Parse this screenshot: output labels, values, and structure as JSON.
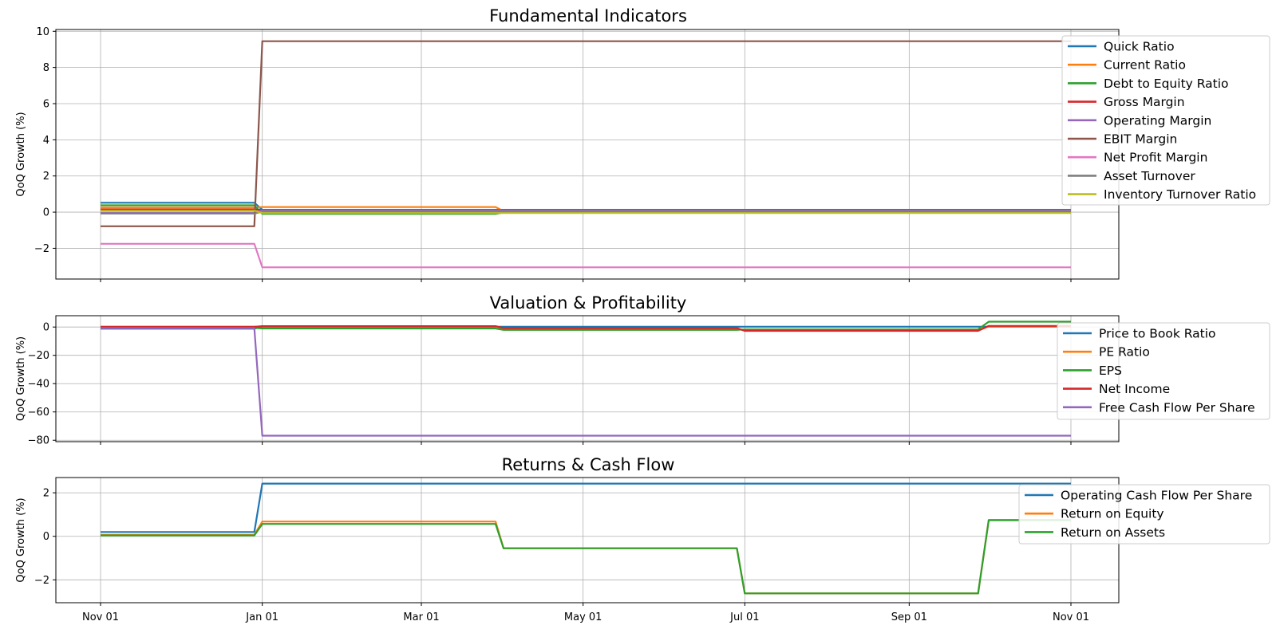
{
  "chart_data": [
    {
      "type": "line",
      "title": "Fundamental Indicators",
      "ylabel": "QoQ Growth (%)",
      "ylim": [
        -3.7,
        10.1
      ],
      "yticks": [
        -2,
        0,
        2,
        4,
        6,
        8,
        10
      ],
      "grid": true,
      "legend_position": "right",
      "series": [
        {
          "name": "Quick Ratio",
          "color": "#1f77b4",
          "x": [
            "2023-11-01",
            "2023-12-29",
            "2024-01-01",
            "2024-11-01"
          ],
          "y": [
            0.52,
            0.52,
            0.13,
            0.13
          ]
        },
        {
          "name": "Current Ratio",
          "color": "#ff7f0e",
          "x": [
            "2023-11-01",
            "2023-12-29",
            "2024-01-01",
            "2024-03-29",
            "2024-04-01",
            "2024-11-01"
          ],
          "y": [
            0.25,
            0.25,
            0.28,
            0.28,
            0.05,
            0.05
          ]
        },
        {
          "name": "Debt to Equity Ratio",
          "color": "#2ca02c",
          "x": [
            "2023-11-01",
            "2023-12-29",
            "2024-01-01",
            "2024-03-29",
            "2024-04-01",
            "2024-11-01"
          ],
          "y": [
            0.38,
            0.38,
            -0.1,
            -0.1,
            -0.02,
            -0.02
          ]
        },
        {
          "name": "Gross Margin",
          "color": "#d62728",
          "x": [
            "2023-11-01",
            "2023-12-29",
            "2024-01-01",
            "2024-11-01"
          ],
          "y": [
            0.15,
            0.15,
            0.12,
            0.12
          ]
        },
        {
          "name": "Operating Margin",
          "color": "#9467bd",
          "x": [
            "2023-11-01",
            "2023-12-29",
            "2024-01-01",
            "2024-11-01"
          ],
          "y": [
            -0.05,
            -0.05,
            0.1,
            0.1
          ]
        },
        {
          "name": "EBIT Margin",
          "color": "#8c564b",
          "x": [
            "2023-11-01",
            "2023-12-29",
            "2024-01-01",
            "2024-11-01"
          ],
          "y": [
            -0.78,
            -0.78,
            9.45,
            9.45
          ]
        },
        {
          "name": "Net Profit Margin",
          "color": "#e377c2",
          "x": [
            "2023-11-01",
            "2023-12-29",
            "2024-01-01",
            "2024-11-01"
          ],
          "y": [
            -1.75,
            -1.75,
            -3.05,
            -3.05
          ]
        },
        {
          "name": "Asset Turnover",
          "color": "#7f7f7f",
          "x": [
            "2023-11-01",
            "2023-12-29",
            "2024-01-01",
            "2024-11-01"
          ],
          "y": [
            -0.08,
            -0.08,
            0.03,
            0.03
          ]
        },
        {
          "name": "Inventory Turnover Ratio",
          "color": "#bcbd22",
          "x": [
            "2023-11-01",
            "2023-12-29",
            "2024-01-01",
            "2024-11-01"
          ],
          "y": [
            0.08,
            0.08,
            -0.05,
            -0.05
          ]
        }
      ]
    },
    {
      "type": "line",
      "title": "Valuation & Profitability",
      "ylabel": "QoQ Growth (%)",
      "ylim": [
        -81,
        8
      ],
      "yticks": [
        -80,
        -60,
        -40,
        -20,
        0
      ],
      "grid": true,
      "legend_position": "right",
      "series": [
        {
          "name": "Price to Book Ratio",
          "color": "#1f77b4",
          "x": [
            "2023-11-01",
            "2023-12-29",
            "2024-01-01",
            "2024-11-01"
          ],
          "y": [
            -1.2,
            -1.2,
            0.2,
            0.2
          ]
        },
        {
          "name": "PE Ratio",
          "color": "#ff7f0e",
          "x": [
            "2023-11-01",
            "2023-12-29",
            "2024-01-01",
            "2024-03-29",
            "2024-04-01",
            "2024-06-28",
            "2024-07-01",
            "2024-09-27",
            "2024-10-01",
            "2024-11-01"
          ],
          "y": [
            0.3,
            0.3,
            0.5,
            0.5,
            -1.2,
            -1.2,
            -2.4,
            -2.4,
            0.4,
            0.4
          ]
        },
        {
          "name": "EPS",
          "color": "#2ca02c",
          "x": [
            "2023-11-01",
            "2023-12-29",
            "2024-01-01",
            "2024-03-29",
            "2024-04-01",
            "2024-06-28",
            "2024-07-01",
            "2024-09-27",
            "2024-10-01",
            "2024-11-01"
          ],
          "y": [
            -0.5,
            -0.5,
            -1.0,
            -1.0,
            -2.0,
            -2.0,
            -1.7,
            -1.7,
            3.8,
            3.8
          ]
        },
        {
          "name": "Net Income",
          "color": "#d62728",
          "x": [
            "2023-11-01",
            "2023-12-29",
            "2024-01-01",
            "2024-03-29",
            "2024-04-01",
            "2024-06-28",
            "2024-07-01",
            "2024-09-27",
            "2024-10-01",
            "2024-11-01"
          ],
          "y": [
            0.1,
            0.1,
            0.6,
            0.6,
            -0.8,
            -0.8,
            -2.7,
            -2.7,
            0.8,
            0.8
          ]
        },
        {
          "name": "Free Cash Flow Per Share",
          "color": "#9467bd",
          "x": [
            "2023-11-01",
            "2023-12-29",
            "2024-01-01",
            "2024-11-01"
          ],
          "y": [
            -0.8,
            -0.8,
            -76.8,
            -76.8
          ]
        }
      ]
    },
    {
      "type": "line",
      "title": "Returns & Cash Flow",
      "ylabel": "QoQ Growth (%)",
      "ylim": [
        -3.05,
        2.7
      ],
      "yticks": [
        -2,
        0,
        2
      ],
      "grid": true,
      "legend_position": "right",
      "xticks": [
        "Nov 01",
        "Jan 01",
        "Mar 01",
        "May 01",
        "Jul 01",
        "Sep 01",
        "Nov 01"
      ],
      "series": [
        {
          "name": "Operating Cash Flow Per Share",
          "color": "#1f77b4",
          "x": [
            "2023-11-01",
            "2023-12-29",
            "2024-01-01",
            "2024-11-01"
          ],
          "y": [
            0.2,
            0.2,
            2.42,
            2.42
          ]
        },
        {
          "name": "Return on Equity",
          "color": "#ff7f0e",
          "x": [
            "2023-11-01",
            "2023-12-29",
            "2024-01-01",
            "2024-03-29",
            "2024-04-01",
            "2024-06-28",
            "2024-07-01",
            "2024-09-27",
            "2024-10-01",
            "2024-11-01"
          ],
          "y": [
            0.07,
            0.07,
            0.68,
            0.68,
            -0.55,
            -0.55,
            -2.62,
            -2.62,
            0.75,
            0.75
          ]
        },
        {
          "name": "Return on Assets",
          "color": "#2ca02c",
          "x": [
            "2023-11-01",
            "2023-12-29",
            "2024-01-01",
            "2024-03-29",
            "2024-04-01",
            "2024-06-28",
            "2024-07-01",
            "2024-09-27",
            "2024-10-01",
            "2024-11-01"
          ],
          "y": [
            0.04,
            0.04,
            0.57,
            0.57,
            -0.55,
            -0.55,
            -2.62,
            -2.62,
            0.74,
            0.74
          ]
        }
      ]
    }
  ]
}
